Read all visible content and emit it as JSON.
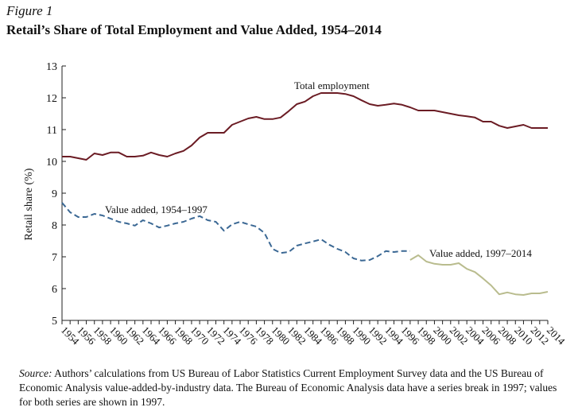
{
  "figure": {
    "label": "Figure 1",
    "title": "Retail’s Share of Total Employment and Value Added, 1954–2014"
  },
  "source": {
    "lead": "Source:",
    "text": "Authors’ calculations from US Bureau of Labor Statistics Current Employment Survey data and the US Bureau of Economic Analysis value-added-by-industry data. The Bureau of Economic Analysis data have a series break in 1997; values for both series are shown in 1997."
  },
  "chart_data": {
    "type": "line",
    "title": "Retail’s Share of Total Employment and Value Added, 1954–2014",
    "xlabel": "",
    "ylabel": "Retail share (%)",
    "xlim": [
      1954,
      2014
    ],
    "ylim": [
      5,
      13
    ],
    "yticks": [
      5,
      6,
      7,
      8,
      9,
      10,
      11,
      12,
      13
    ],
    "xticks": [
      1954,
      1956,
      1958,
      1960,
      1962,
      1964,
      1966,
      1968,
      1970,
      1972,
      1974,
      1976,
      1978,
      1980,
      1982,
      1984,
      1986,
      1988,
      1990,
      1992,
      1994,
      1996,
      1998,
      2000,
      2002,
      2004,
      2006,
      2008,
      2010,
      2012,
      2014
    ],
    "grid": false,
    "series": [
      {
        "name": "Total employment",
        "color": "#6b1c24",
        "style": "solid",
        "x": [
          1954,
          1955,
          1956,
          1957,
          1958,
          1959,
          1960,
          1961,
          1962,
          1963,
          1964,
          1965,
          1966,
          1967,
          1968,
          1969,
          1970,
          1971,
          1972,
          1973,
          1974,
          1975,
          1976,
          1977,
          1978,
          1979,
          1980,
          1981,
          1982,
          1983,
          1984,
          1985,
          1986,
          1987,
          1988,
          1989,
          1990,
          1991,
          1992,
          1993,
          1994,
          1995,
          1996,
          1997,
          1998,
          1999,
          2000,
          2001,
          2002,
          2003,
          2004,
          2005,
          2006,
          2007,
          2008,
          2009,
          2010,
          2011,
          2012,
          2013,
          2014
        ],
        "y": [
          10.15,
          10.15,
          10.1,
          10.05,
          10.25,
          10.2,
          10.28,
          10.28,
          10.15,
          10.15,
          10.18,
          10.28,
          10.2,
          10.15,
          10.25,
          10.33,
          10.5,
          10.75,
          10.9,
          10.9,
          10.9,
          11.15,
          11.25,
          11.35,
          11.4,
          11.33,
          11.33,
          11.38,
          11.58,
          11.8,
          11.88,
          12.05,
          12.15,
          12.15,
          12.15,
          12.12,
          12.05,
          11.92,
          11.8,
          11.75,
          11.78,
          11.82,
          11.78,
          11.7,
          11.6,
          11.6,
          11.6,
          11.55,
          11.5,
          11.45,
          11.42,
          11.38,
          11.25,
          11.25,
          11.12,
          11.05,
          11.1,
          11.15,
          11.05,
          11.05,
          11.05
        ]
      },
      {
        "name": "Value added, 1954–1997",
        "color": "#3b6894",
        "style": "dashed",
        "x": [
          1954,
          1955,
          1956,
          1957,
          1958,
          1959,
          1960,
          1961,
          1962,
          1963,
          1964,
          1965,
          1966,
          1967,
          1968,
          1969,
          1970,
          1971,
          1972,
          1973,
          1974,
          1975,
          1976,
          1977,
          1978,
          1979,
          1980,
          1981,
          1982,
          1983,
          1984,
          1985,
          1986,
          1987,
          1988,
          1989,
          1990,
          1991,
          1992,
          1993,
          1994,
          1995,
          1996,
          1997
        ],
        "y": [
          8.7,
          8.4,
          8.25,
          8.25,
          8.35,
          8.3,
          8.2,
          8.1,
          8.05,
          7.98,
          8.15,
          8.05,
          7.92,
          7.98,
          8.05,
          8.1,
          8.2,
          8.28,
          8.15,
          8.1,
          7.82,
          8.02,
          8.1,
          8.02,
          7.95,
          7.75,
          7.25,
          7.12,
          7.15,
          7.35,
          7.42,
          7.48,
          7.55,
          7.38,
          7.25,
          7.15,
          6.95,
          6.88,
          6.9,
          7.02,
          7.18,
          7.15,
          7.18,
          7.18
        ]
      },
      {
        "name": "Value added, 1997–2014",
        "color": "#b9bc8e",
        "style": "solid",
        "x": [
          1997,
          1998,
          1999,
          2000,
          2001,
          2002,
          2003,
          2004,
          2005,
          2006,
          2007,
          2008,
          2009,
          2010,
          2011,
          2012,
          2013,
          2014
        ],
        "y": [
          6.9,
          7.05,
          6.85,
          6.78,
          6.75,
          6.75,
          6.8,
          6.62,
          6.52,
          6.32,
          6.1,
          5.82,
          5.88,
          5.82,
          5.8,
          5.85,
          5.85,
          5.9
        ]
      }
    ],
    "annotations": [
      {
        "text": "Total employment",
        "series": 0
      },
      {
        "text": "Value added, 1954–1997",
        "series": 1
      },
      {
        "text": "Value added, 1997–2014",
        "series": 2
      }
    ]
  }
}
